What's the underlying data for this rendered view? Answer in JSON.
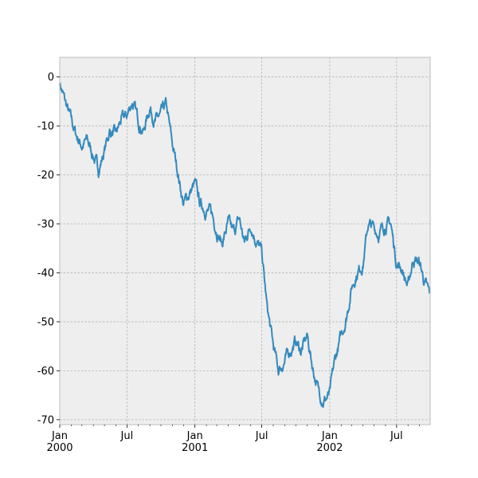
{
  "chart_data": {
    "type": "line",
    "title": "",
    "xlabel": "",
    "ylabel": "",
    "grid": true,
    "legend": "none",
    "colors": {
      "background": "#EEEEEE",
      "line": "#348ABD",
      "grid": "#B2B2B2",
      "axes_edge": "#BCBCBC"
    },
    "xlim": [
      "2000-01-01",
      "2002-09-30"
    ],
    "ylim": [
      -71,
      4
    ],
    "x_major_ticks": [
      {
        "date": "2000-01-01",
        "line1": "Jan",
        "line2": "2000"
      },
      {
        "date": "2000-07-01",
        "line1": "Jul",
        "line2": ""
      },
      {
        "date": "2001-01-01",
        "line1": "Jan",
        "line2": "2001"
      },
      {
        "date": "2001-07-01",
        "line1": "Jul",
        "line2": ""
      },
      {
        "date": "2002-01-01",
        "line1": "Jan",
        "line2": "2002"
      },
      {
        "date": "2002-07-01",
        "line1": "Jul",
        "line2": ""
      }
    ],
    "y_ticks": [
      {
        "value": 0,
        "label": "0"
      },
      {
        "value": -10,
        "label": "-10"
      },
      {
        "value": -20,
        "label": "-20"
      },
      {
        "value": -30,
        "label": "-30"
      },
      {
        "value": -40,
        "label": "-40"
      },
      {
        "value": -50,
        "label": "-50"
      },
      {
        "value": -60,
        "label": "-60"
      },
      {
        "value": -70,
        "label": "-70"
      }
    ],
    "series": [
      {
        "x": [
          "2000-01-01",
          "2000-01-15",
          "2000-02-01",
          "2000-02-15",
          "2000-03-01",
          "2000-03-15",
          "2000-04-01",
          "2000-04-15",
          "2000-05-01",
          "2000-05-15",
          "2000-06-01",
          "2000-06-15",
          "2000-07-01",
          "2000-07-15",
          "2000-08-01",
          "2000-08-15",
          "2000-09-01",
          "2000-09-15",
          "2000-10-01",
          "2000-10-15",
          "2000-11-01",
          "2000-11-15",
          "2000-12-01",
          "2000-12-15",
          "2001-01-01",
          "2001-01-15",
          "2001-02-01",
          "2001-02-15",
          "2001-03-01",
          "2001-03-15",
          "2001-04-01",
          "2001-04-15",
          "2001-05-01",
          "2001-05-15",
          "2001-06-01",
          "2001-06-15",
          "2001-07-01",
          "2001-07-15",
          "2001-08-01",
          "2001-08-15",
          "2001-09-01",
          "2001-09-15",
          "2001-10-01",
          "2001-10-15",
          "2001-11-01",
          "2001-11-15",
          "2001-12-01",
          "2001-12-15",
          "2002-01-01",
          "2002-01-15",
          "2002-02-01",
          "2002-02-15",
          "2002-03-01",
          "2002-03-15",
          "2002-04-01",
          "2002-04-15",
          "2002-05-01",
          "2002-05-15",
          "2002-06-01",
          "2002-06-15",
          "2002-07-01",
          "2002-07-15",
          "2002-08-01",
          "2002-08-15",
          "2002-09-01",
          "2002-09-15",
          "2002-09-30"
        ],
        "y": [
          -1,
          -5,
          -9,
          -12,
          -14,
          -13,
          -16,
          -19,
          -15,
          -11,
          -12,
          -9,
          -8,
          -5,
          -9,
          -11,
          -6,
          -9,
          -8,
          -6,
          -14,
          -19,
          -26,
          -24,
          -22,
          -26,
          -27,
          -28,
          -31,
          -34,
          -30,
          -32,
          -29,
          -34,
          -30,
          -33,
          -36,
          -47,
          -55,
          -60,
          -58,
          -56,
          -54,
          -56,
          -53,
          -59,
          -64,
          -66,
          -65,
          -58,
          -53,
          -49,
          -43,
          -40,
          -38,
          -30,
          -31,
          -32,
          -30,
          -30,
          -38,
          -39,
          -43,
          -37,
          -38,
          -42,
          -45
        ]
      }
    ]
  }
}
